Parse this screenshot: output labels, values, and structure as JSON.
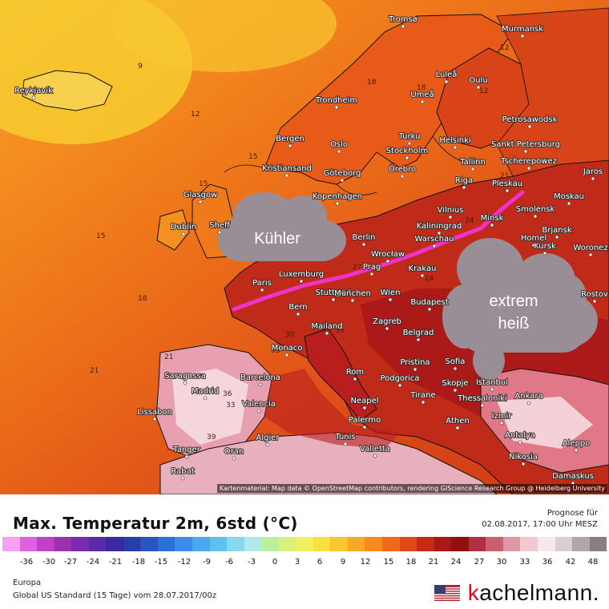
{
  "map": {
    "credit": "Kartenmaterial: Map data © OpenStreetMap contributors, rendering GIScience Research Group @ Heidelberg University",
    "annotations": {
      "cool_label": "Kühler",
      "hot_line1": "extrem",
      "hot_line2": "heiß"
    },
    "contour_labels": [
      "9",
      "12",
      "15",
      "15",
      "18",
      "21",
      "18",
      "12",
      "18",
      "21",
      "24",
      "27",
      "30",
      "33",
      "36",
      "36",
      "39",
      "33",
      "21",
      "24",
      "12",
      "15"
    ],
    "cities": [
      "Tromsø",
      "Murmansk",
      "Reykjavík",
      "Luleå",
      "Oulu",
      "Umeå",
      "Petrosawodsk",
      "Trondheim",
      "Turku",
      "Helsinki",
      "Sankt Petersburg",
      "Bergen",
      "Oslo",
      "Stockholm",
      "Tscherepowez",
      "Jaros",
      "Kristiansand",
      "Göteborg",
      "Örebro",
      "Tallinn",
      "Pleskau",
      "Glasgow",
      "Kopenhagen",
      "Riga",
      "Moskau",
      "Dublin",
      "Sheff",
      "Vilnius",
      "Kaliningrad",
      "Smolensk",
      "Berlin",
      "Minsk",
      "Brjansk",
      "Homel",
      "Warschau",
      "Wrocław",
      "Kursk",
      "Woronez",
      "Luxemburg",
      "Krakau",
      "Paris",
      "Stuttgart",
      "München",
      "Prag",
      "Wien",
      "Budapest",
      "Bern",
      "Mailand",
      "Zagreb",
      "Belgrad",
      "Monaco",
      "Rom",
      "Pristina",
      "Sofia",
      "Istanbul",
      "Saragossa",
      "Barcelona",
      "Podgorica",
      "Madrid",
      "Valencia",
      "Neapel",
      "Tirane",
      "Skopje",
      "Thessaloniki",
      "Ankara",
      "Lissabon",
      "Palermo",
      "Athen",
      "Izmir",
      "Antalya",
      "Algier",
      "Tunis",
      "Valletta",
      "Tanger",
      "Oran",
      "Rabat",
      "Nikosia",
      "Aleppo",
      "Damaskus",
      "Rostov"
    ]
  },
  "footer": {
    "title": "Max. Temperatur 2m, 6std (°C)",
    "prognose_label": "Prognose für",
    "prognose_date": "02.08.2017, 17:00 Uhr MESZ",
    "region": "Europa",
    "model": "Global US Standard (15 Tage) vom 28.07.2017/00z",
    "brand_k": "k",
    "brand_rest": "achelmann.",
    "scale_ticks": [
      "-36",
      "-30",
      "-27",
      "-24",
      "-21",
      "-18",
      "-15",
      "-12",
      "-9",
      "-6",
      "-3",
      "0",
      "3",
      "6",
      "9",
      "12",
      "15",
      "18",
      "21",
      "24",
      "27",
      "30",
      "33",
      "36",
      "42",
      "48"
    ],
    "scale_colors": [
      "#f5a0f0",
      "#e060e0",
      "#c040c8",
      "#9c30b0",
      "#7a2cb0",
      "#5a2aa8",
      "#3a2aa0",
      "#2a3ca8",
      "#2a55c0",
      "#2a70d8",
      "#3a8ce8",
      "#4aa8f0",
      "#60c0f0",
      "#88d8f0",
      "#b0e8e8",
      "#b8f0a0",
      "#d8f080",
      "#f0f060",
      "#f8e040",
      "#f8c830",
      "#f8a828",
      "#f88820",
      "#f06818",
      "#e04818",
      "#c82818",
      "#a81818",
      "#901010",
      "#b03040",
      "#c86070",
      "#e098a8",
      "#f0c8d0",
      "#f8e8ec",
      "#d8d0d0",
      "#b0a8a8",
      "#888080"
    ]
  },
  "colors": {
    "line_magenta": "#f032c8",
    "cloud_gray": "#9a8e96",
    "brand_red": "#e2001a"
  }
}
